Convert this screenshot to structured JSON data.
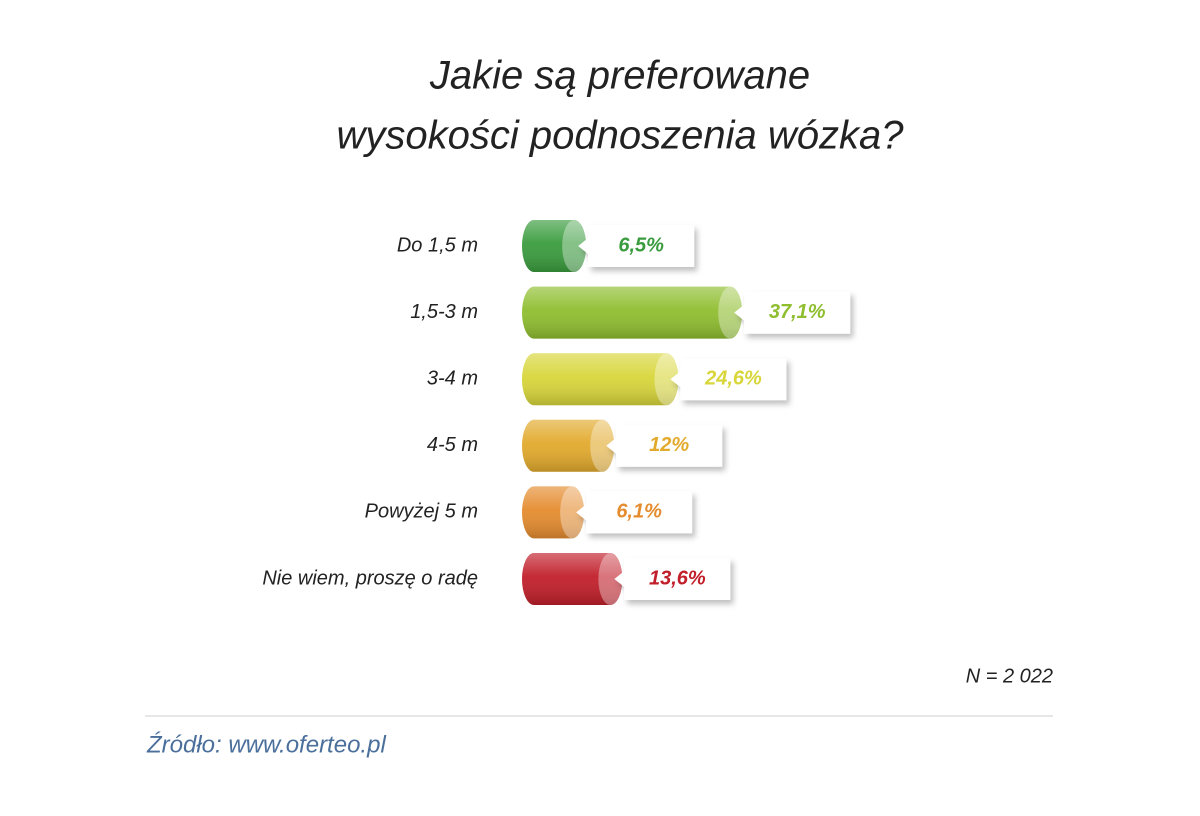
{
  "chart_data": {
    "type": "bar",
    "title": [
      "Jakie są preferowane",
      "wysokości podnoszenia wózka?"
    ],
    "categories": [
      "Do 1,5 m",
      "1,5-3 m",
      "3-4 m",
      "4-5 m",
      "Powyżej 5 m",
      "Nie wiem, proszę o radę"
    ],
    "values": [
      6.5,
      37.1,
      24.6,
      12,
      6.1,
      13.6
    ],
    "value_labels": [
      "6,5%",
      "37,1%",
      "24,6%",
      "12%",
      "6,1%",
      "13,6%"
    ],
    "colors": [
      "#3a9c3e",
      "#8fbe2f",
      "#d8d63a",
      "#e2aa2c",
      "#e58c2f",
      "#c11f2a"
    ],
    "note": "N = 2 022",
    "source": "Źródło: www.oferteo.pl"
  }
}
